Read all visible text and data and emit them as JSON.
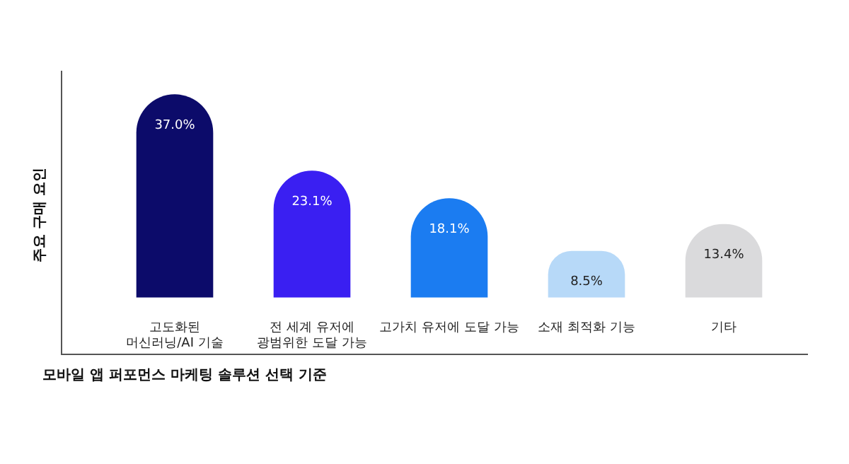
{
  "chart_data": {
    "type": "bar",
    "xlabel": "모바일 앱 퍼포먼스 마케팅 솔루션 선택 기준",
    "ylabel": "주요 구매 요인",
    "categories": [
      "고도화된\n머신러닝/AI 기술",
      "전 세계 유저에\n광범위한 도달 가능",
      "고가치 유저에 도달 가능",
      "소재 최적화 기능",
      "기타"
    ],
    "values": [
      37.0,
      23.1,
      18.1,
      8.5,
      13.4
    ],
    "value_labels": [
      "37.0%",
      "23.1%",
      "18.1%",
      "8.5%",
      "13.4%"
    ],
    "colors": [
      "#0c0b6a",
      "#3a1ff2",
      "#1b7cf1",
      "#b7d9f8",
      "#dadadc"
    ],
    "grid": false,
    "legend": false
  }
}
